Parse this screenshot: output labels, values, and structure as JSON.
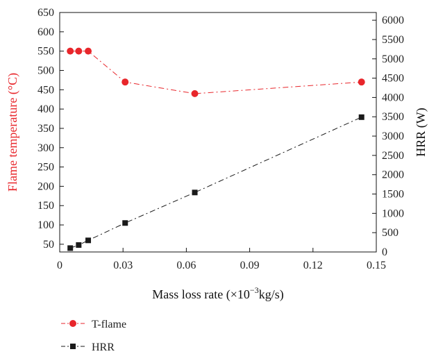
{
  "chart_data": {
    "type": "line",
    "xlabel": "Mass loss rate (×10",
    "xlabel_sup": "−3",
    "xlabel_suffix": "kg/s)",
    "ylabel_left": "Flame temperature (°C)",
    "ylabel_right": "HRR (W)",
    "xlim": [
      0,
      0.15
    ],
    "ylim_left": [
      30,
      650
    ],
    "ylim_right": [
      0,
      6200
    ],
    "x_ticks": [
      "0",
      "0.03",
      "0.06",
      "0.09",
      "0.12",
      "0.15"
    ],
    "y_left_ticks": [
      "50",
      "100",
      "150",
      "200",
      "250",
      "300",
      "350",
      "400",
      "450",
      "500",
      "550",
      "600",
      "650"
    ],
    "y_right_ticks": [
      "0",
      "500",
      "1000",
      "1500",
      "2000",
      "2500",
      "3000",
      "3500",
      "4000",
      "4500",
      "5000",
      "5500",
      "6000"
    ],
    "grid": false,
    "legend_position": "bottom-left",
    "colors": {
      "t_flame": "#e8262b",
      "hrr": "#1a1a1a",
      "left_axis": "#e8262b"
    },
    "series": [
      {
        "name": "T-flame",
        "axis": "left",
        "marker": "circle",
        "x": [
          0.005,
          0.009,
          0.0135,
          0.031,
          0.064,
          0.143
        ],
        "y": [
          550,
          550,
          550,
          470,
          440,
          470
        ]
      },
      {
        "name": "HRR",
        "axis": "right",
        "marker": "square",
        "x": [
          0.005,
          0.009,
          0.0135,
          0.031,
          0.064,
          0.143
        ],
        "y": [
          100,
          180,
          300,
          750,
          1540,
          3490
        ]
      }
    ]
  }
}
